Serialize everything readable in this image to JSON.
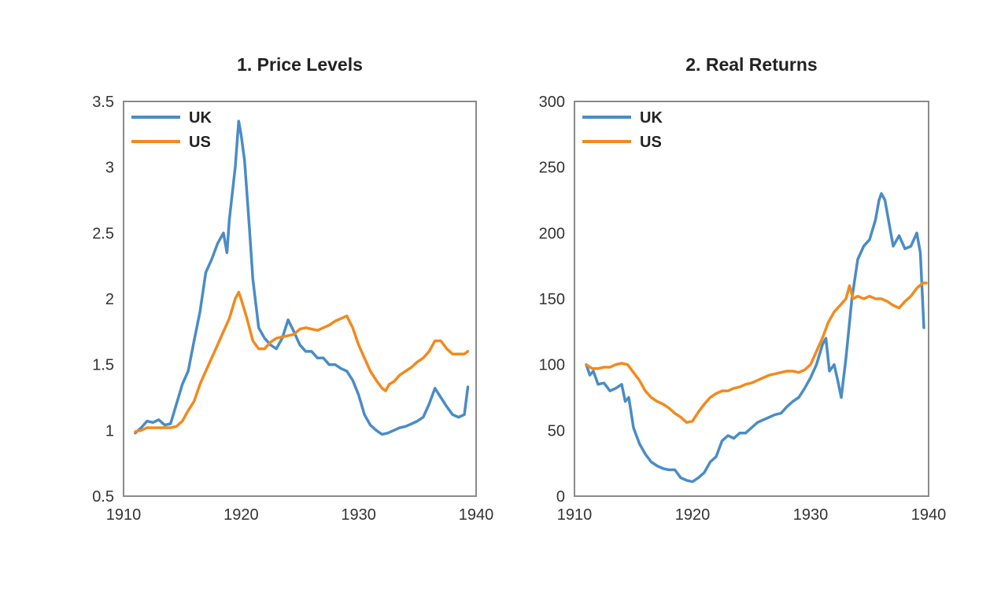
{
  "chart_data": [
    {
      "type": "line",
      "title": "1. Price Levels",
      "xlabel": "",
      "ylabel": "",
      "xlim": [
        1910,
        1940
      ],
      "ylim": [
        0.5,
        3.5
      ],
      "x_ticks": [
        1910,
        1920,
        1930,
        1940
      ],
      "x_tick_labels": [
        "1910",
        "1920",
        "1930",
        "1940"
      ],
      "y_ticks": [
        0.5,
        1,
        1.5,
        2,
        2.5,
        3,
        3.5
      ],
      "y_tick_labels": [
        "0.5",
        "1",
        "1.5",
        "2",
        "2.5",
        "3",
        "3.5"
      ],
      "legend_position": "top-left",
      "series": [
        {
          "name": "UK",
          "color": "#4a8cc6",
          "points": [
            [
              1911,
              0.98
            ],
            [
              1911.5,
              1.02
            ],
            [
              1912,
              1.07
            ],
            [
              1912.5,
              1.06
            ],
            [
              1913,
              1.08
            ],
            [
              1913.5,
              1.04
            ],
            [
              1914,
              1.05
            ],
            [
              1914.5,
              1.2
            ],
            [
              1915,
              1.35
            ],
            [
              1915.5,
              1.45
            ],
            [
              1916,
              1.68
            ],
            [
              1916.5,
              1.9
            ],
            [
              1917,
              2.2
            ],
            [
              1917.5,
              2.3
            ],
            [
              1918,
              2.42
            ],
            [
              1918.5,
              2.5
            ],
            [
              1918.8,
              2.35
            ],
            [
              1919,
              2.6
            ],
            [
              1919.5,
              3.0
            ],
            [
              1919.8,
              3.35
            ],
            [
              1920,
              3.25
            ],
            [
              1920.3,
              3.05
            ],
            [
              1920.7,
              2.55
            ],
            [
              1921,
              2.15
            ],
            [
              1921.5,
              1.78
            ],
            [
              1922,
              1.7
            ],
            [
              1922.5,
              1.65
            ],
            [
              1923,
              1.62
            ],
            [
              1923.5,
              1.7
            ],
            [
              1924,
              1.84
            ],
            [
              1924.5,
              1.75
            ],
            [
              1925,
              1.65
            ],
            [
              1925.5,
              1.6
            ],
            [
              1926,
              1.6
            ],
            [
              1926.5,
              1.55
            ],
            [
              1927,
              1.55
            ],
            [
              1927.5,
              1.5
            ],
            [
              1928,
              1.5
            ],
            [
              1928.5,
              1.47
            ],
            [
              1929,
              1.45
            ],
            [
              1929.5,
              1.38
            ],
            [
              1930,
              1.27
            ],
            [
              1930.5,
              1.12
            ],
            [
              1931,
              1.04
            ],
            [
              1931.5,
              1.0
            ],
            [
              1932,
              0.97
            ],
            [
              1932.5,
              0.98
            ],
            [
              1933,
              1.0
            ],
            [
              1933.5,
              1.02
            ],
            [
              1934,
              1.03
            ],
            [
              1934.5,
              1.05
            ],
            [
              1935,
              1.07
            ],
            [
              1935.5,
              1.1
            ],
            [
              1936,
              1.2
            ],
            [
              1936.5,
              1.32
            ],
            [
              1937,
              1.25
            ],
            [
              1937.5,
              1.18
            ],
            [
              1938,
              1.12
            ],
            [
              1938.5,
              1.1
            ],
            [
              1939,
              1.12
            ],
            [
              1939.3,
              1.33
            ]
          ]
        },
        {
          "name": "US",
          "color": "#f28a1e",
          "points": [
            [
              1911,
              0.99
            ],
            [
              1911.5,
              1.0
            ],
            [
              1912,
              1.02
            ],
            [
              1912.5,
              1.02
            ],
            [
              1913,
              1.02
            ],
            [
              1913.5,
              1.02
            ],
            [
              1914,
              1.02
            ],
            [
              1914.5,
              1.03
            ],
            [
              1915,
              1.07
            ],
            [
              1915.5,
              1.15
            ],
            [
              1916,
              1.22
            ],
            [
              1916.5,
              1.35
            ],
            [
              1917,
              1.45
            ],
            [
              1917.5,
              1.55
            ],
            [
              1918,
              1.65
            ],
            [
              1918.5,
              1.75
            ],
            [
              1919,
              1.85
            ],
            [
              1919.5,
              2.0
            ],
            [
              1919.8,
              2.05
            ],
            [
              1920,
              2.0
            ],
            [
              1920.5,
              1.85
            ],
            [
              1921,
              1.68
            ],
            [
              1921.5,
              1.62
            ],
            [
              1922,
              1.62
            ],
            [
              1922.5,
              1.67
            ],
            [
              1923,
              1.7
            ],
            [
              1923.5,
              1.71
            ],
            [
              1924,
              1.72
            ],
            [
              1924.5,
              1.73
            ],
            [
              1925,
              1.77
            ],
            [
              1925.5,
              1.78
            ],
            [
              1926,
              1.77
            ],
            [
              1926.5,
              1.76
            ],
            [
              1927,
              1.78
            ],
            [
              1927.5,
              1.8
            ],
            [
              1928,
              1.83
            ],
            [
              1928.5,
              1.85
            ],
            [
              1929,
              1.87
            ],
            [
              1929.5,
              1.78
            ],
            [
              1930,
              1.65
            ],
            [
              1930.5,
              1.55
            ],
            [
              1931,
              1.45
            ],
            [
              1931.5,
              1.38
            ],
            [
              1932,
              1.32
            ],
            [
              1932.3,
              1.3
            ],
            [
              1932.6,
              1.35
            ],
            [
              1933,
              1.37
            ],
            [
              1933.5,
              1.42
            ],
            [
              1934,
              1.45
            ],
            [
              1934.5,
              1.48
            ],
            [
              1935,
              1.52
            ],
            [
              1935.5,
              1.55
            ],
            [
              1936,
              1.6
            ],
            [
              1936.5,
              1.68
            ],
            [
              1937,
              1.68
            ],
            [
              1937.5,
              1.62
            ],
            [
              1938,
              1.58
            ],
            [
              1938.5,
              1.58
            ],
            [
              1939,
              1.58
            ],
            [
              1939.3,
              1.6
            ]
          ]
        }
      ]
    },
    {
      "type": "line",
      "title": "2. Real Returns",
      "xlabel": "",
      "ylabel": "",
      "xlim": [
        1910,
        1940
      ],
      "ylim": [
        0,
        300
      ],
      "x_ticks": [
        1910,
        1920,
        1930,
        1940
      ],
      "x_tick_labels": [
        "1910",
        "1920",
        "1930",
        "1940"
      ],
      "y_ticks": [
        0,
        50,
        100,
        150,
        200,
        250,
        300
      ],
      "y_tick_labels": [
        "0",
        "50",
        "100",
        "150",
        "200",
        "250",
        "300"
      ],
      "legend_position": "top-left",
      "series": [
        {
          "name": "UK",
          "color": "#4a8cc6",
          "points": [
            [
              1911,
              100
            ],
            [
              1911.3,
              92
            ],
            [
              1911.6,
              95
            ],
            [
              1912,
              85
            ],
            [
              1912.5,
              86
            ],
            [
              1913,
              80
            ],
            [
              1913.5,
              82
            ],
            [
              1914,
              85
            ],
            [
              1914.3,
              72
            ],
            [
              1914.6,
              75
            ],
            [
              1915,
              52
            ],
            [
              1915.5,
              40
            ],
            [
              1916,
              32
            ],
            [
              1916.5,
              26
            ],
            [
              1917,
              23
            ],
            [
              1917.5,
              21
            ],
            [
              1918,
              20
            ],
            [
              1918.5,
              20
            ],
            [
              1919,
              14
            ],
            [
              1919.5,
              12
            ],
            [
              1920,
              11
            ],
            [
              1920.5,
              14
            ],
            [
              1921,
              18
            ],
            [
              1921.5,
              26
            ],
            [
              1922,
              30
            ],
            [
              1922.5,
              42
            ],
            [
              1923,
              46
            ],
            [
              1923.5,
              44
            ],
            [
              1924,
              48
            ],
            [
              1924.5,
              48
            ],
            [
              1925,
              52
            ],
            [
              1925.5,
              56
            ],
            [
              1926,
              58
            ],
            [
              1926.5,
              60
            ],
            [
              1927,
              62
            ],
            [
              1927.5,
              63
            ],
            [
              1928,
              68
            ],
            [
              1928.5,
              72
            ],
            [
              1929,
              75
            ],
            [
              1929.5,
              82
            ],
            [
              1930,
              90
            ],
            [
              1930.5,
              100
            ],
            [
              1931,
              115
            ],
            [
              1931.3,
              120
            ],
            [
              1931.6,
              95
            ],
            [
              1932,
              100
            ],
            [
              1932.3,
              88
            ],
            [
              1932.6,
              75
            ],
            [
              1933,
              105
            ],
            [
              1933.5,
              150
            ],
            [
              1934,
              180
            ],
            [
              1934.5,
              190
            ],
            [
              1935,
              195
            ],
            [
              1935.5,
              210
            ],
            [
              1935.8,
              225
            ],
            [
              1936,
              230
            ],
            [
              1936.3,
              225
            ],
            [
              1936.7,
              205
            ],
            [
              1937,
              190
            ],
            [
              1937.5,
              198
            ],
            [
              1938,
              188
            ],
            [
              1938.5,
              190
            ],
            [
              1939,
              200
            ],
            [
              1939.3,
              185
            ],
            [
              1939.6,
              128
            ]
          ]
        },
        {
          "name": "US",
          "color": "#f28a1e",
          "points": [
            [
              1911,
              100
            ],
            [
              1911.5,
              97
            ],
            [
              1912,
              97
            ],
            [
              1912.5,
              98
            ],
            [
              1913,
              98
            ],
            [
              1913.5,
              100
            ],
            [
              1914,
              101
            ],
            [
              1914.5,
              100
            ],
            [
              1915,
              94
            ],
            [
              1915.5,
              88
            ],
            [
              1916,
              80
            ],
            [
              1916.5,
              75
            ],
            [
              1917,
              72
            ],
            [
              1917.5,
              70
            ],
            [
              1918,
              67
            ],
            [
              1918.5,
              63
            ],
            [
              1919,
              60
            ],
            [
              1919.5,
              56
            ],
            [
              1920,
              57
            ],
            [
              1920.5,
              64
            ],
            [
              1921,
              70
            ],
            [
              1921.5,
              75
            ],
            [
              1922,
              78
            ],
            [
              1922.5,
              80
            ],
            [
              1923,
              80
            ],
            [
              1923.5,
              82
            ],
            [
              1924,
              83
            ],
            [
              1924.5,
              85
            ],
            [
              1925,
              86
            ],
            [
              1925.5,
              88
            ],
            [
              1926,
              90
            ],
            [
              1926.5,
              92
            ],
            [
              1927,
              93
            ],
            [
              1927.5,
              94
            ],
            [
              1928,
              95
            ],
            [
              1928.5,
              95
            ],
            [
              1929,
              94
            ],
            [
              1929.5,
              96
            ],
            [
              1930,
              100
            ],
            [
              1930.5,
              110
            ],
            [
              1931,
              120
            ],
            [
              1931.5,
              132
            ],
            [
              1932,
              140
            ],
            [
              1932.5,
              145
            ],
            [
              1933,
              150
            ],
            [
              1933.3,
              160
            ],
            [
              1933.6,
              150
            ],
            [
              1934,
              152
            ],
            [
              1934.5,
              150
            ],
            [
              1935,
              152
            ],
            [
              1935.5,
              150
            ],
            [
              1936,
              150
            ],
            [
              1936.5,
              148
            ],
            [
              1937,
              145
            ],
            [
              1937.5,
              143
            ],
            [
              1938,
              148
            ],
            [
              1938.5,
              152
            ],
            [
              1939,
              158
            ],
            [
              1939.5,
              162
            ],
            [
              1939.8,
              162
            ]
          ]
        }
      ]
    }
  ]
}
